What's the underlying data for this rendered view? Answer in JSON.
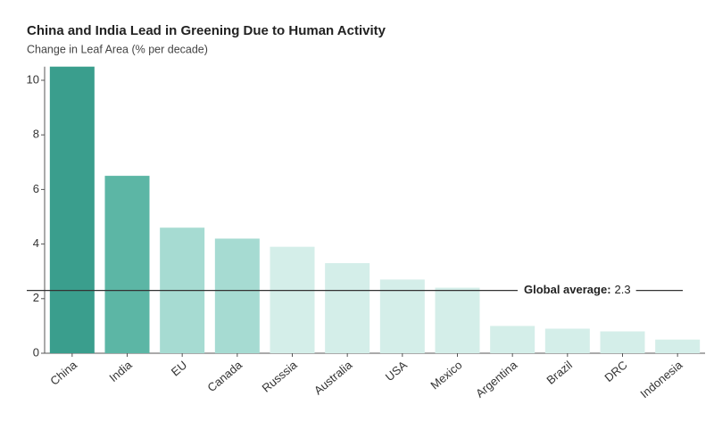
{
  "chart_data": {
    "type": "bar",
    "title": "China and India Lead in Greening Due to Human Activity",
    "subtitle": "Change in Leaf Area (% per decade)",
    "categories": [
      "China",
      "India",
      "EU",
      "Canada",
      "Russsia",
      "Australia",
      "USA",
      "Mexico",
      "Argentina",
      "Brazil",
      "DRC",
      "Indonesia"
    ],
    "values": [
      10.5,
      6.5,
      4.6,
      4.2,
      3.9,
      3.3,
      2.7,
      2.4,
      1.0,
      0.9,
      0.8,
      0.5
    ],
    "colors": [
      "#3a9e8d",
      "#5cb6a5",
      "#a6dbd2",
      "#a6dbd2",
      "#d4eee9",
      "#d4eee9",
      "#d4eee9",
      "#d4eee9",
      "#d4eee9",
      "#d4eee9",
      "#d4eee9",
      "#d4eee9"
    ],
    "ylim": [
      0,
      10.5
    ],
    "yticks": [
      0,
      2,
      4,
      6,
      8,
      10
    ],
    "global_average": {
      "label": "Global average:",
      "value": 2.3
    }
  }
}
